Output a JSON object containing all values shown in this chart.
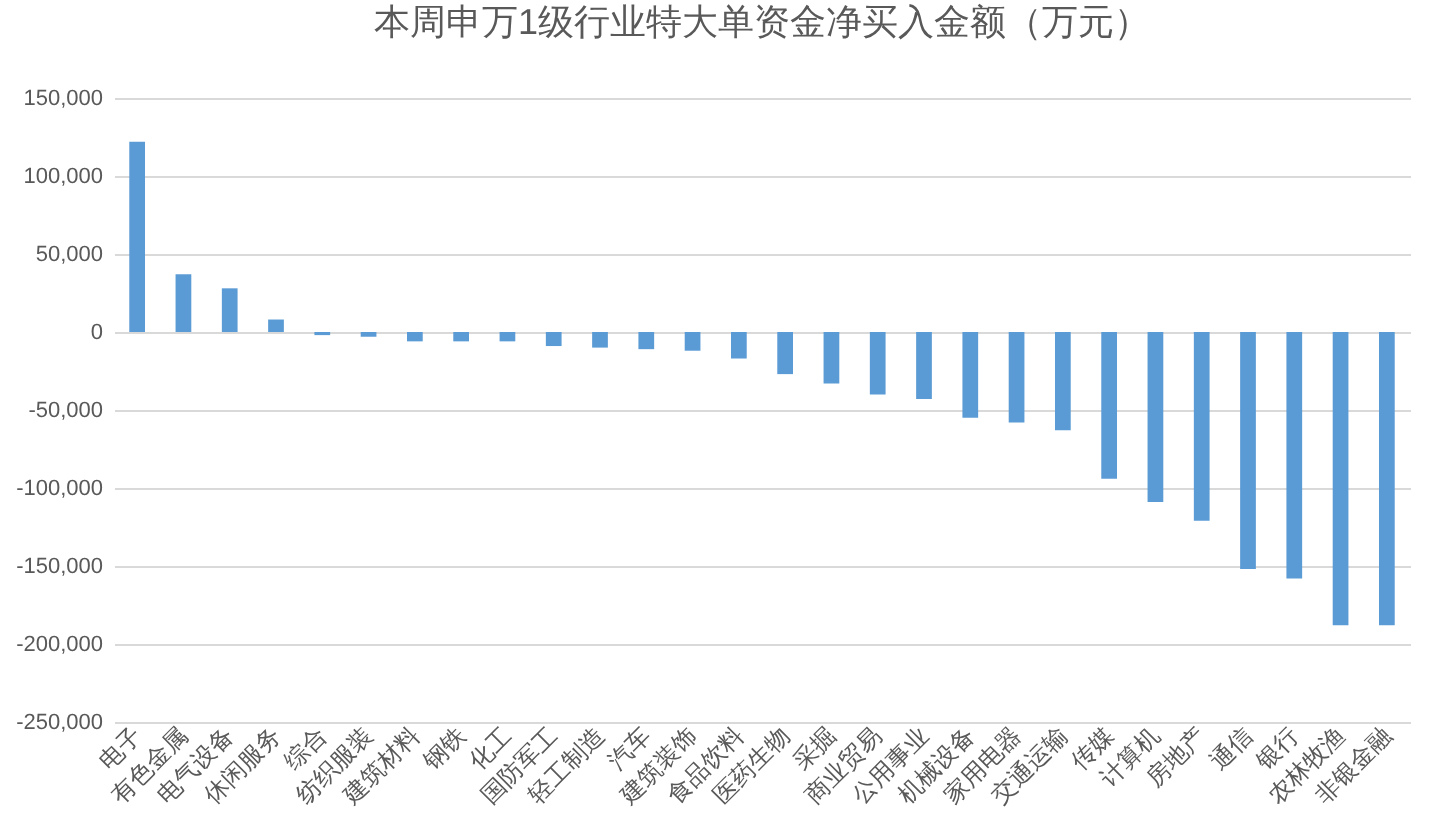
{
  "chart_data": {
    "type": "bar",
    "title": "本周申万1级行业特大单资金净买入金额（万元）",
    "categories": [
      "电子",
      "有色金属",
      "电气设备",
      "休闲服务",
      "综合",
      "纺织服装",
      "建筑材料",
      "钢铁",
      "化工",
      "国防军工",
      "轻工制造",
      "汽车",
      "建筑装饰",
      "食品饮料",
      "医药生物",
      "采掘",
      "商业贸易",
      "公用事业",
      "机械设备",
      "家用电器",
      "交通运输",
      "传媒",
      "计算机",
      "房地产",
      "通信",
      "银行",
      "农林牧渔",
      "非银金融"
    ],
    "values": [
      122000,
      37000,
      28000,
      8000,
      -2000,
      -3000,
      -6000,
      -6000,
      -6000,
      -9000,
      -10000,
      -11000,
      -12000,
      -17000,
      -27000,
      -33000,
      -40000,
      -43000,
      -55000,
      -58000,
      -63000,
      -94000,
      -109000,
      -121000,
      -152000,
      -158000,
      -188000,
      -188000
    ],
    "color": "#5b9bd5",
    "ylim": [
      -250000,
      150000
    ],
    "yticks": [
      {
        "value": -250000,
        "label": "-250,000"
      },
      {
        "value": -200000,
        "label": "-200,000"
      },
      {
        "value": -150000,
        "label": "-150,000"
      },
      {
        "value": -100000,
        "label": "-100,000"
      },
      {
        "value": -50000,
        "label": "-50,000"
      },
      0,
      {
        "value": 50000,
        "label": "50,000"
      },
      {
        "value": 100000,
        "label": "100,000"
      },
      {
        "value": 150000,
        "label": "150,000"
      }
    ],
    "grid": "y"
  }
}
